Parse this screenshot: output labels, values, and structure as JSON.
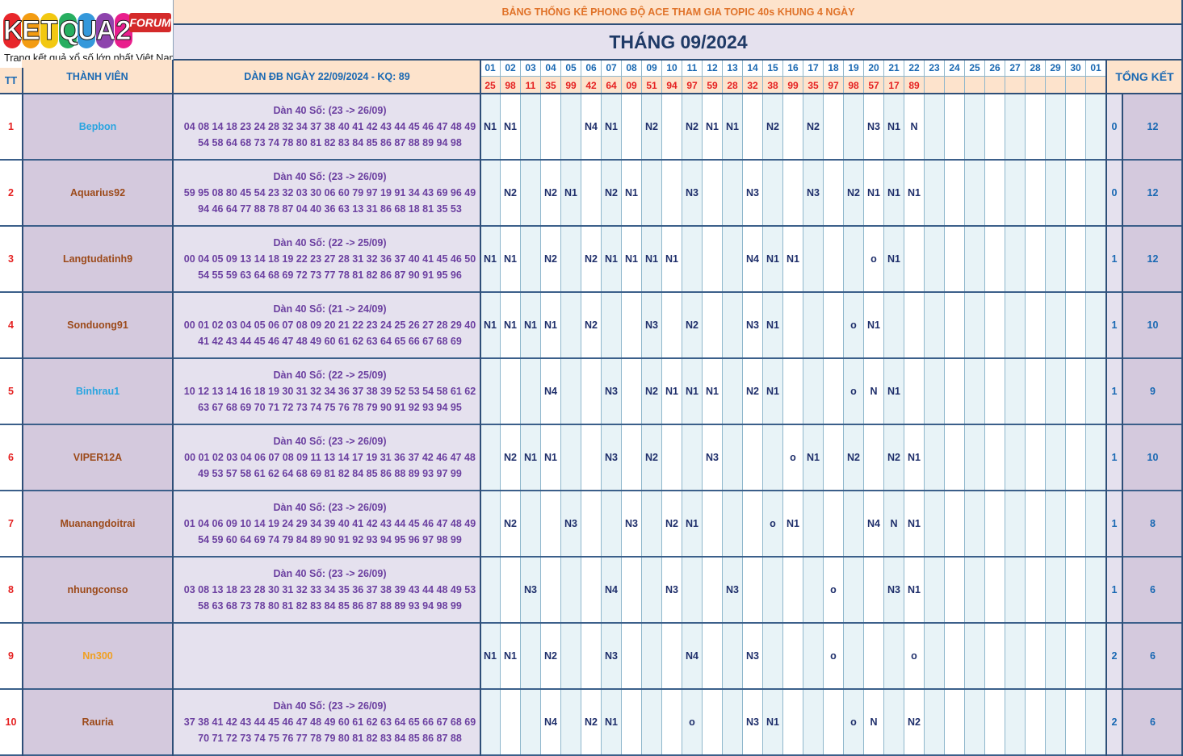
{
  "header": {
    "logo_text": "KETQUA2",
    "logo_badge": "FORUM",
    "logo_tagline": "Trang kết quả xổ số lớn nhất Việt Nam",
    "table_title": "BẢNG THỐNG KÊ PHONG ĐỘ ACE THAM GIA TOPIC 40s KHUNG 4 NGÀY",
    "month_title": "THÁNG 09/2024",
    "col_tt": "TT",
    "col_member": "THÀNH VIÊN",
    "col_dan": "DÀN ĐB NGÀY 22/09/2024 - KQ: 89",
    "col_total": "TỔNG KẾT"
  },
  "days": [
    "01",
    "02",
    "03",
    "04",
    "05",
    "06",
    "07",
    "08",
    "09",
    "10",
    "11",
    "12",
    "13",
    "14",
    "15",
    "16",
    "17",
    "18",
    "19",
    "20",
    "21",
    "22",
    "23",
    "24",
    "25",
    "26",
    "27",
    "28",
    "29",
    "30",
    "01"
  ],
  "results": [
    "25",
    "98",
    "11",
    "35",
    "99",
    "42",
    "64",
    "09",
    "51",
    "94",
    "97",
    "59",
    "28",
    "32",
    "38",
    "99",
    "35",
    "97",
    "98",
    "57",
    "17",
    "89",
    "",
    "",
    "",
    "",
    "",
    "",
    "",
    "",
    ""
  ],
  "colors": {
    "header_peach": "#fde3cc",
    "member_bg": "#d4c9dd",
    "dan_bg": "#e5e1ee",
    "day_col_light": "#e8f3f7",
    "title_bg": "#e5e1ee",
    "header_text_blue": "#1a69b3",
    "result_red": "#e52222",
    "mark_navy": "#1f2f6b",
    "dan_purple": "#6b3fa0"
  },
  "rows": [
    {
      "tt": "1",
      "name": "Bepbon",
      "name_color": "#2aa5e0",
      "dan_title": "Dàn 40 Số: (23 -> 26/09)",
      "dan_line1": "04 08 14 18 23 24 28 32 34 37 38 40 41 42 43 44 45 46 47 48 49",
      "dan_line2": "54 58 64 68 73 74 78 80 81 82 83 84 85 86 87 88 89 94 98",
      "marks": [
        "N1",
        "N1",
        "",
        "",
        "",
        "N4",
        "N1",
        "",
        "N2",
        "",
        "N2",
        "N1",
        "N1",
        "",
        "N2",
        "",
        "N2",
        "",
        "",
        "N3",
        "N1",
        "N",
        "",
        "",
        "",
        "",
        "",
        "",
        "",
        "",
        ""
      ],
      "total_a": "0",
      "total_b": "12"
    },
    {
      "tt": "2",
      "name": "Aquarius92",
      "name_color": "#9c4a1a",
      "dan_title": "Dàn 40 Số: (23 -> 26/09)",
      "dan_line1": "59 95 08 80 45 54 23 32 03 30 06 60 79 97 19 91 34 43 69 96 49",
      "dan_line2": "94 46 64 77 88 78 87 04 40 36 63 13 31 86 68 18 81 35 53",
      "marks": [
        "",
        "N2",
        "",
        "N2",
        "N1",
        "",
        "N2",
        "N1",
        "",
        "",
        "N3",
        "",
        "",
        "N3",
        "",
        "",
        "N3",
        "",
        "N2",
        "N1",
        "N1",
        "N1",
        "",
        "",
        "",
        "",
        "",
        "",
        "",
        "",
        ""
      ],
      "total_a": "0",
      "total_b": "12"
    },
    {
      "tt": "3",
      "name": "Langtudatinh9",
      "name_color": "#9c4a1a",
      "dan_title": "Dàn 40 Số: (22 -> 25/09)",
      "dan_line1": "00 04 05 09 13 14 18 19 22 23 27 28 31 32 36 37 40 41 45 46 50",
      "dan_line2": "54 55 59 63 64 68 69 72 73 77 78 81 82 86 87 90 91 95 96",
      "marks": [
        "N1",
        "N1",
        "",
        "N2",
        "",
        "N2",
        "N1",
        "N1",
        "N1",
        "N1",
        "",
        "",
        "",
        "N4",
        "N1",
        "N1",
        "",
        "",
        "",
        "o",
        "N1",
        "",
        "",
        "",
        "",
        "",
        "",
        "",
        "",
        "",
        ""
      ],
      "total_a": "1",
      "total_b": "12"
    },
    {
      "tt": "4",
      "name": "Sonduong91",
      "name_color": "#9c4a1a",
      "dan_title": "Dàn 40 Số: (21 -> 24/09)",
      "dan_line1": "00 01 02 03 04 05 06 07 08 09 20 21 22 23 24 25 26 27 28 29 40",
      "dan_line2": "41 42 43 44 45 46 47 48 49 60 61 62 63 64 65 66 67 68 69",
      "marks": [
        "N1",
        "N1",
        "N1",
        "N1",
        "",
        "N2",
        "",
        "",
        "N3",
        "",
        "N2",
        "",
        "",
        "N3",
        "N1",
        "",
        "",
        "",
        "o",
        "N1",
        "",
        "",
        "",
        "",
        "",
        "",
        "",
        "",
        "",
        "",
        ""
      ],
      "total_a": "1",
      "total_b": "10"
    },
    {
      "tt": "5",
      "name": "Binhrau1",
      "name_color": "#2aa5e0",
      "dan_title": "Dàn 40 Số: (22 -> 25/09)",
      "dan_line1": "10 12 13 14 16 18 19 30 31 32 34 36 37 38 39 52 53 54 58 61 62",
      "dan_line2": "63 67 68 69 70 71 72 73 74 75 76 78 79 90 91 92 93 94 95",
      "marks": [
        "",
        "",
        "",
        "N4",
        "",
        "",
        "N3",
        "",
        "N2",
        "N1",
        "N1",
        "N1",
        "",
        "N2",
        "N1",
        "",
        "",
        "",
        "o",
        "N",
        "N1",
        "",
        "",
        "",
        "",
        "",
        "",
        "",
        "",
        "",
        ""
      ],
      "total_a": "1",
      "total_b": "9"
    },
    {
      "tt": "6",
      "name": "VIPER12A",
      "name_color": "#9c4a1a",
      "dan_title": "Dàn 40 Số: (23 -> 26/09)",
      "dan_line1": "00 01 02 03 04 06 07 08 09 11 13 14 17 19 31 36 37 42 46 47 48",
      "dan_line2": "49 53 57 58 61 62 64 68 69 81 82 84 85 86 88 89 93 97 99",
      "marks": [
        "",
        "N2",
        "N1",
        "N1",
        "",
        "",
        "N3",
        "",
        "N2",
        "",
        "",
        "N3",
        "",
        "",
        "",
        "o",
        "N1",
        "",
        "N2",
        "",
        "N2",
        "N1",
        "",
        "",
        "",
        "",
        "",
        "",
        "",
        "",
        ""
      ],
      "total_a": "1",
      "total_b": "10"
    },
    {
      "tt": "7",
      "name": "Muanangdoitrai",
      "name_color": "#9c4a1a",
      "dan_title": "Dàn 40 Số: (23 -> 26/09)",
      "dan_line1": "01 04 06 09 10 14 19 24 29 34 39 40 41 42 43 44 45 46 47 48 49",
      "dan_line2": "54 59 60 64 69 74 79 84 89 90 91 92 93 94 95 96 97 98 99",
      "marks": [
        "",
        "N2",
        "",
        "",
        "N3",
        "",
        "",
        "N3",
        "",
        "N2",
        "N1",
        "",
        "",
        "",
        "o",
        "N1",
        "",
        "",
        "",
        "N4",
        "N",
        "N1",
        "",
        "",
        "",
        "",
        "",
        "",
        "",
        "",
        ""
      ],
      "total_a": "1",
      "total_b": "8"
    },
    {
      "tt": "8",
      "name": "nhungconso",
      "name_color": "#9c4a1a",
      "dan_title": "Dàn 40 Số: (23 -> 26/09)",
      "dan_line1": "03 08 13 18 23 28 30 31 32 33 34 35 36 37 38 39 43 44 48 49 53",
      "dan_line2": "58 63 68 73 78 80 81 82 83 84 85 86 87 88 89 93 94 98 99",
      "marks": [
        "",
        "",
        "N3",
        "",
        "",
        "",
        "N4",
        "",
        "",
        "N3",
        "",
        "",
        "N3",
        "",
        "",
        "",
        "",
        "o",
        "",
        "",
        "N3",
        "N1",
        "",
        "",
        "",
        "",
        "",
        "",
        "",
        "",
        ""
      ],
      "total_a": "1",
      "total_b": "6"
    },
    {
      "tt": "9",
      "name": "Nn300",
      "name_color": "#f0a020",
      "dan_title": "",
      "dan_line1": "",
      "dan_line2": "",
      "marks": [
        "N1",
        "N1",
        "",
        "N2",
        "",
        "",
        "N3",
        "",
        "",
        "",
        "N4",
        "",
        "",
        "N3",
        "",
        "",
        "",
        "o",
        "",
        "",
        "",
        "o",
        "",
        "",
        "",
        "",
        "",
        "",
        "",
        "",
        ""
      ],
      "total_a": "2",
      "total_b": "6"
    },
    {
      "tt": "10",
      "name": "Rauria",
      "name_color": "#9c4a1a",
      "dan_title": "Dàn 40 Số: (23 -> 26/09)",
      "dan_line1": "37 38 41 42 43 44 45 46 47 48 49 60 61 62 63 64 65 66 67 68 69",
      "dan_line2": "70 71 72 73 74 75 76 77 78 79 80 81 82 83 84 85 86 87 88",
      "marks": [
        "",
        "",
        "",
        "N4",
        "",
        "N2",
        "N1",
        "",
        "",
        "",
        "o",
        "",
        "",
        "N3",
        "N1",
        "",
        "",
        "",
        "o",
        "N",
        "",
        "N2",
        "",
        "",
        "",
        "",
        "",
        "",
        "",
        "",
        ""
      ],
      "total_a": "2",
      "total_b": "6"
    }
  ]
}
